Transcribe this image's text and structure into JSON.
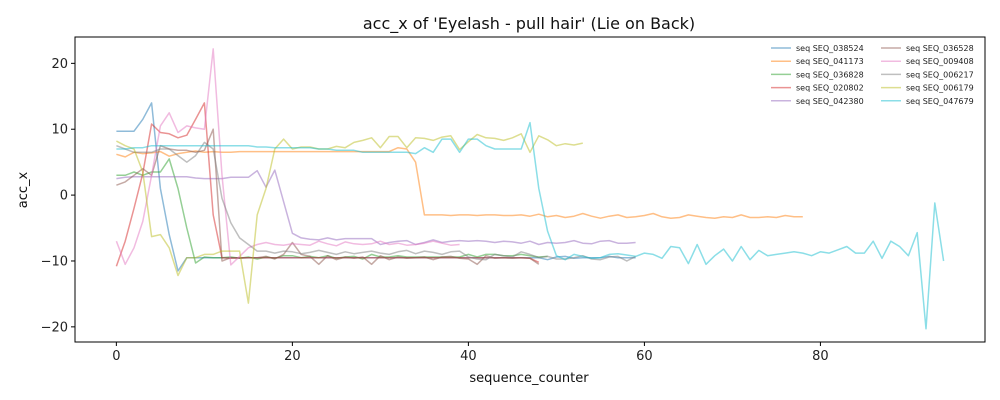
{
  "chart_data": {
    "type": "line",
    "title": "acc_x of 'Eyelash - pull hair' (Lie on Back)",
    "xlabel": "sequence_counter",
    "ylabel": "acc_x",
    "xlim": [
      -4.7,
      98.7
    ],
    "ylim": [
      -22.3,
      24.0
    ],
    "xticks": [
      0,
      20,
      40,
      60,
      80
    ],
    "yticks": [
      -20,
      -10,
      0,
      10,
      20
    ],
    "grid": false,
    "legend": {
      "placement": "top-right",
      "columns": 2
    },
    "series": [
      {
        "name": "seq SEQ_038524",
        "color": "#1f77b4",
        "values": [
          9.7,
          9.7,
          9.7,
          11.5,
          14,
          1,
          -6,
          -11.5,
          -9.5,
          -9.5,
          -9.5,
          -9.5,
          -9.5,
          -9.5,
          -9.5,
          -9.5,
          -9.5,
          -9.5,
          -9.5,
          -9.5,
          -9.5,
          -9.5,
          -9.5,
          -9.5,
          -9.5,
          -9.5,
          -9.5,
          -9.5,
          -9.5,
          -9.5,
          -9.5,
          -9.5,
          -9.5,
          -9.5,
          -9.5,
          -9.5,
          -9.5,
          -9.5,
          -9.5,
          -9.5,
          -9.5,
          -9.5,
          -9.5,
          -9.5,
          -9.5,
          -9.5,
          -9.5,
          -9.5,
          -9.5,
          -9.8,
          -9.4,
          -9.3,
          -9.6,
          -9.5,
          -9.5,
          -9.5,
          -9.3,
          -9.5,
          -9.5,
          -9.5
        ]
      },
      {
        "name": "seq SEQ_041173",
        "color": "#ff7f0e",
        "values": [
          6.2,
          5.8,
          6.5,
          6.3,
          6.4,
          6.6,
          5.9,
          6.3,
          6.5,
          6.7,
          6.5,
          6.6,
          6.5,
          6.5,
          6.6,
          6.6,
          6.6,
          6.6,
          6.6,
          6.6,
          6.6,
          6.6,
          6.6,
          6.6,
          6.6,
          6.6,
          6.6,
          6.6,
          6.6,
          6.6,
          6.6,
          6.6,
          7.2,
          7.0,
          5.0,
          -3.0,
          -3.0,
          -3.0,
          -3.1,
          -3.0,
          -3.0,
          -3.1,
          -3.0,
          -3.0,
          -3.1,
          -3.1,
          -3.0,
          -3.2,
          -2.9,
          -3.3,
          -3.1,
          -3.4,
          -3.2,
          -2.8,
          -3.2,
          -3.5,
          -3.2,
          -3.0,
          -3.4,
          -3.3,
          -3.1,
          -2.8,
          -3.3,
          -3.5,
          -3.4,
          -3.0,
          -3.2,
          -3.4,
          -3.5,
          -3.3,
          -3.4,
          -3.0,
          -3.4,
          -3.4,
          -3.3,
          -3.4,
          -3.1,
          -3.3,
          -3.3
        ]
      },
      {
        "name": "seq SEQ_036828",
        "color": "#2ca02c",
        "values": [
          3,
          3,
          3.5,
          3,
          3.5,
          3.5,
          5.5,
          1,
          -5,
          -10.3,
          -9.4,
          -9.5,
          -9.5,
          -9.4,
          -9.6,
          -9.4,
          -9.7,
          -9.4,
          -9.6,
          -9.2,
          -9.2,
          -9.5,
          -9.3,
          -9.5,
          -9.2,
          -9.6,
          -9.4,
          -9.3,
          -9.7,
          -9.0,
          -9.4,
          -9.4,
          -9.2,
          -9.4,
          -9.4,
          -9.4,
          -9.4,
          -9.4,
          -9.4,
          -9.4,
          -9.0,
          -9.4,
          -9.0,
          -9.0,
          -9.2,
          -9.2,
          -9.0,
          -9.2,
          -9.4,
          -9.3
        ]
      },
      {
        "name": "seq SEQ_020802",
        "color": "#d62728",
        "values": [
          -10.8,
          -7,
          -2,
          3.3,
          10.8,
          9.5,
          9.3,
          8.7,
          9.1,
          11.5,
          14,
          -3,
          -9.5,
          -9.6,
          -9.5,
          -9.5,
          -9.5,
          -9.5,
          -9.5,
          -9.5,
          -9.5,
          -9.5,
          -9.5,
          -9.5,
          -9.5,
          -9.5,
          -9.5,
          -9.5,
          -9.5,
          -9.5,
          -9.5,
          -9.5,
          -9.5,
          -9.5,
          -9.5,
          -9.5,
          -9.5,
          -9.5,
          -9.5,
          -9.5,
          -9.5,
          -9.5,
          -9.5,
          -9.5,
          -9.5,
          -9.5,
          -9.5,
          -9.6,
          -10.2
        ]
      },
      {
        "name": "seq SEQ_042380",
        "color": "#9467bd",
        "values": [
          2.5,
          2.7,
          2.8,
          2.8,
          2.8,
          2.8,
          2.8,
          2.8,
          2.8,
          2.6,
          2.5,
          2.5,
          2.5,
          2.7,
          2.7,
          2.7,
          3.7,
          1.2,
          3.8,
          -1,
          -5.8,
          -6.5,
          -6.7,
          -6.8,
          -6.5,
          -6.8,
          -6.6,
          -6.6,
          -6.6,
          -6.6,
          -7.5,
          -7.2,
          -7.0,
          -6.9,
          -7.5,
          -7.2,
          -6.8,
          -7.2,
          -7.0,
          -6.9,
          -7.0,
          -6.9,
          -7.0,
          -7.2,
          -7.0,
          -7.1,
          -7.3,
          -7.0,
          -7.5,
          -7.2,
          -7.3,
          -7.2,
          -6.9,
          -7.3,
          -7.4,
          -7.0,
          -6.9,
          -7.3,
          -7.3,
          -7.2
        ]
      },
      {
        "name": "seq SEQ_036528",
        "color": "#8c564b",
        "values": [
          1.5,
          2,
          3,
          4,
          3,
          7.5,
          7,
          6.8,
          6.8,
          6.5,
          6.8,
          10,
          -10,
          -9.5,
          -9.6,
          -9.5,
          -9.5,
          -9.3,
          -9.7,
          -9.0,
          -7.2,
          -9.0,
          -9.3,
          -10.5,
          -9.2,
          -9.8,
          -9.4,
          -9.6,
          -9.4,
          -10.5,
          -9.2,
          -9.8,
          -9.4,
          -9.6,
          -9.5,
          -9.4,
          -9.8,
          -9.4,
          -9.3,
          -9.6,
          -9.7,
          -10.5,
          -9.2,
          -9.6,
          -9.5,
          -9.6,
          -9.5,
          -9.6,
          -10.5
        ]
      },
      {
        "name": "seq SEQ_009408",
        "color": "#e377c2",
        "values": [
          -7,
          -10.5,
          -8,
          -4,
          3,
          10.5,
          12.5,
          9.5,
          10.5,
          10.2,
          10,
          22.2,
          3,
          -10.6,
          -9.3,
          -8,
          -7.5,
          -7.2,
          -7.5,
          -7.6,
          -7.4,
          -7.5,
          -7.6,
          -7.0,
          -7.4,
          -7.7,
          -7.1,
          -7.4,
          -7.5,
          -7.4,
          -7.0,
          -7.5,
          -7.3,
          -7.6,
          -7.5,
          -7.3,
          -7.0,
          -7.3,
          -7.6,
          -7.5
        ]
      },
      {
        "name": "seq SEQ_006217",
        "color": "#7f7f7f",
        "values": [
          7.5,
          7,
          6.5,
          6.5,
          6.5,
          7,
          7,
          6,
          5,
          6,
          8,
          7,
          -0.5,
          -4.2,
          -6.5,
          -7.5,
          -8.5,
          -8.5,
          -8.8,
          -8.5,
          -8.6,
          -8.9,
          -8.7,
          -8.4,
          -8.7,
          -9,
          -8.6,
          -8.9,
          -8.7,
          -8.5,
          -8.8,
          -9,
          -8.6,
          -8.4,
          -8.9,
          -8.5,
          -8.7,
          -9,
          -8.6,
          -8.5,
          -9.4,
          -9.7,
          -9.8,
          -9,
          -9.2,
          -9.4,
          -8.6,
          -9,
          -9.5,
          -9.3,
          -9.7,
          -9.7,
          -9.5,
          -9.2,
          -9.7,
          -9.8,
          -9.4,
          -9.3,
          -10,
          -9.3
        ]
      },
      {
        "name": "seq SEQ_006179",
        "color": "#bcbd22",
        "values": [
          8.2,
          7.5,
          7,
          3.5,
          -6.3,
          -6,
          -8,
          -12.2,
          -9.5,
          -9.5,
          -9,
          -9,
          -8.5,
          -8.5,
          -8.5,
          -16.4,
          -3,
          1,
          7,
          8.5,
          7.0,
          7.3,
          7.3,
          7.0,
          7.0,
          7.4,
          7.2,
          8.0,
          8.3,
          8.7,
          7.2,
          8.9,
          8.9,
          7.2,
          8.7,
          8.6,
          8.3,
          8.8,
          9.0,
          6.9,
          8.1,
          9.2,
          8.7,
          8.6,
          8.3,
          8.7,
          9.3,
          6.5,
          9.0,
          8.4,
          7.5,
          7.8,
          7.6,
          7.9
        ]
      },
      {
        "name": "seq SEQ_047679",
        "color": "#17becf",
        "values": [
          7,
          7,
          7.2,
          7.2,
          7.5,
          7.5,
          7.5,
          7.5,
          7.5,
          7.5,
          7.5,
          7.5,
          7.5,
          7.5,
          7.5,
          7.5,
          7.3,
          7.3,
          7.2,
          7.2,
          7.2,
          7.2,
          7.2,
          7.0,
          7.0,
          6.8,
          6.8,
          6.8,
          6.5,
          6.5,
          6.5,
          6.5,
          6.5,
          6.5,
          6.3,
          7.2,
          6.5,
          8.5,
          8.5,
          6.5,
          8.5,
          8.5,
          7.5,
          7.0,
          7.0,
          7.0,
          7.0,
          11,
          1,
          -5.5,
          -9.2,
          -9.8,
          -9.0,
          -9.3,
          -9.6,
          -9.5,
          -9.0,
          -8.9,
          -9.1,
          -9.3,
          -8.8,
          -9.0,
          -9.6,
          -7.8,
          -8.0,
          -10.4,
          -7.5,
          -10.5,
          -9.2,
          -8.2,
          -10.0,
          -7.8,
          -9.8,
          -8.4,
          -9.2,
          -9.0,
          -8.8,
          -8.6,
          -8.8,
          -9.2,
          -8.6,
          -8.8,
          -8.3,
          -7.8,
          -8.8,
          -8.8,
          -7.0,
          -9.6,
          -7.0,
          -7.8,
          -9.2,
          -5.7,
          -20.3,
          -1.2,
          -10
        ]
      }
    ]
  }
}
